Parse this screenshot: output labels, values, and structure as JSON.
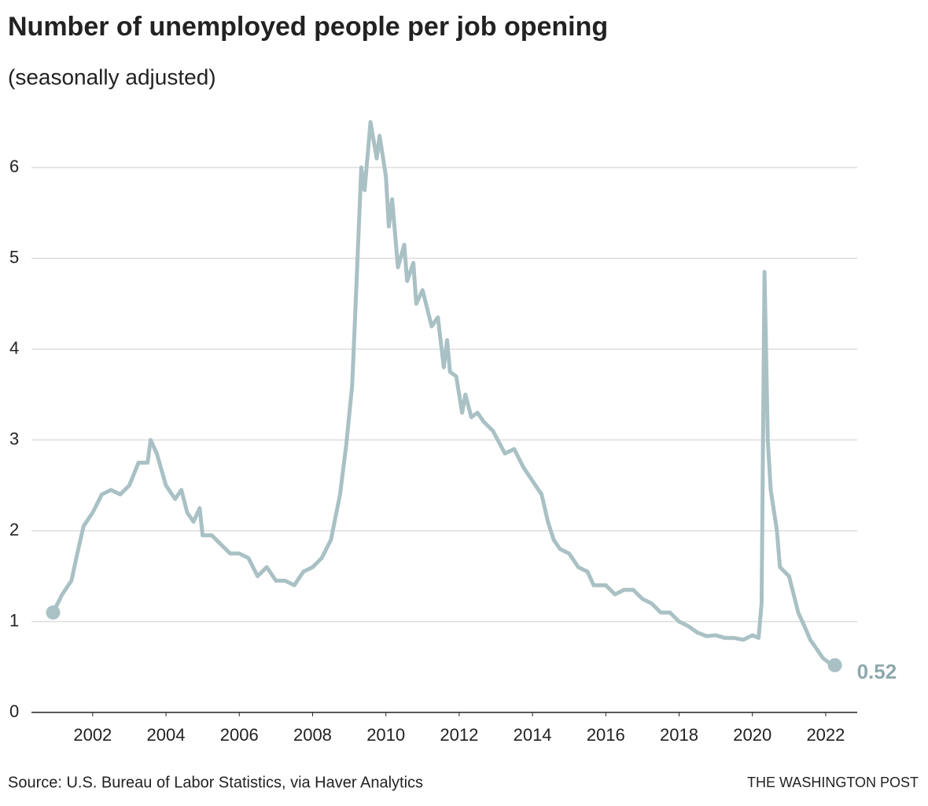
{
  "chart_data": {
    "type": "line",
    "title": "Number of unemployed people per job opening",
    "subtitle": "(seasonally adjusted)",
    "source": "Source: U.S. Bureau of Labor Statistics, via Haver Analytics",
    "credit": "THE WASHINGTON POST",
    "color": "#a9c1c4",
    "x": [
      2000.92,
      2001.17,
      2001.42,
      2001.58,
      2001.75,
      2002.0,
      2002.25,
      2002.5,
      2002.75,
      2003.0,
      2003.25,
      2003.5,
      2003.58,
      2003.75,
      2004.0,
      2004.25,
      2004.42,
      2004.58,
      2004.75,
      2004.92,
      2005.0,
      2005.25,
      2005.5,
      2005.75,
      2006.0,
      2006.25,
      2006.5,
      2006.75,
      2007.0,
      2007.25,
      2007.5,
      2007.75,
      2008.0,
      2008.25,
      2008.5,
      2008.75,
      2008.92,
      2009.08,
      2009.17,
      2009.33,
      2009.42,
      2009.58,
      2009.75,
      2009.83,
      2010.0,
      2010.08,
      2010.17,
      2010.33,
      2010.5,
      2010.58,
      2010.75,
      2010.83,
      2011.0,
      2011.25,
      2011.42,
      2011.58,
      2011.67,
      2011.75,
      2011.92,
      2012.08,
      2012.17,
      2012.33,
      2012.5,
      2012.67,
      2012.92,
      2013.25,
      2013.5,
      2013.75,
      2014.0,
      2014.25,
      2014.42,
      2014.58,
      2014.75,
      2015.0,
      2015.25,
      2015.5,
      2015.67,
      2016.0,
      2016.25,
      2016.5,
      2016.75,
      2017.0,
      2017.25,
      2017.5,
      2017.75,
      2018.0,
      2018.25,
      2018.5,
      2018.75,
      2019.0,
      2019.25,
      2019.5,
      2019.75,
      2020.0,
      2020.17,
      2020.25,
      2020.33,
      2020.42,
      2020.5,
      2020.67,
      2020.75,
      2021.0,
      2021.25,
      2021.42,
      2021.58,
      2021.75,
      2021.92,
      2022.08,
      2022.25
    ],
    "values": [
      1.1,
      1.3,
      1.45,
      1.75,
      2.05,
      2.2,
      2.4,
      2.45,
      2.4,
      2.5,
      2.75,
      2.75,
      3.0,
      2.85,
      2.5,
      2.35,
      2.45,
      2.2,
      2.1,
      2.25,
      1.95,
      1.95,
      1.85,
      1.75,
      1.75,
      1.7,
      1.5,
      1.6,
      1.45,
      1.45,
      1.4,
      1.55,
      1.6,
      1.7,
      1.9,
      2.4,
      2.95,
      3.6,
      4.45,
      6.0,
      5.75,
      6.5,
      6.1,
      6.35,
      5.9,
      5.35,
      5.65,
      4.9,
      5.15,
      4.75,
      4.95,
      4.5,
      4.65,
      4.25,
      4.35,
      3.8,
      4.1,
      3.75,
      3.7,
      3.3,
      3.5,
      3.25,
      3.3,
      3.2,
      3.1,
      2.85,
      2.9,
      2.7,
      2.55,
      2.4,
      2.1,
      1.9,
      1.8,
      1.75,
      1.6,
      1.55,
      1.4,
      1.4,
      1.3,
      1.35,
      1.35,
      1.25,
      1.2,
      1.1,
      1.1,
      1.0,
      0.95,
      0.88,
      0.84,
      0.85,
      0.82,
      0.82,
      0.8,
      0.85,
      0.82,
      1.2,
      4.85,
      3.0,
      2.45,
      2.0,
      1.6,
      1.5,
      1.1,
      0.95,
      0.8,
      0.7,
      0.6,
      0.55,
      0.52
    ],
    "xlim": [
      2000.33,
      2022.86
    ],
    "xticks": [
      2002,
      2004,
      2006,
      2008,
      2010,
      2012,
      2014,
      2016,
      2018,
      2020,
      2022
    ],
    "ylim": [
      0,
      6.6
    ],
    "yticks": [
      0,
      1,
      2,
      3,
      4,
      5,
      6
    ],
    "grid": true
  }
}
